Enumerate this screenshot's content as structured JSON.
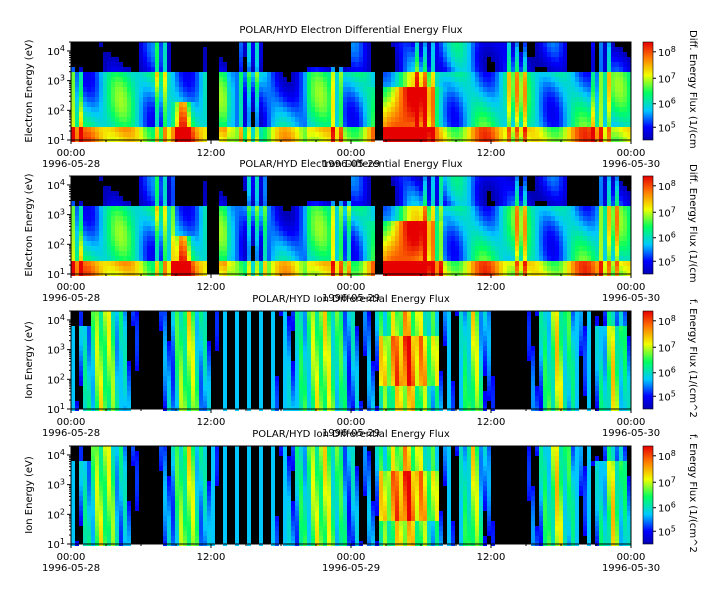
{
  "chart_data": [
    {
      "type": "heatmap",
      "title": "POLAR/HYD  Electron Differential Energy Flux",
      "ylabel": "Electron Energy (eV)",
      "colorbar_label": "Diff. Energy Flux (1/(cm",
      "colorbar_ticks": [
        "10^5",
        "10^6",
        "10^7",
        "10^8"
      ],
      "y_ticks": [
        "10^1",
        "10^2",
        "10^3",
        "10^4"
      ],
      "yscale": "log",
      "ylim": [
        10,
        20000
      ],
      "x_ticks": [
        {
          "time": "00:00",
          "date": "1996-05-28"
        },
        {
          "time": "12:00",
          "date": ""
        },
        {
          "time": "00:00",
          "date": "1996-05-29"
        },
        {
          "time": "12:00",
          "date": ""
        },
        {
          "time": "00:00",
          "date": "1996-05-30"
        }
      ]
    },
    {
      "type": "heatmap",
      "title": "POLAR/HYD  Electron Differential Energy Flux",
      "ylabel": "Electron Energy (eV)",
      "colorbar_label": "Diff. Energy Flux (1/(cm",
      "colorbar_ticks": [
        "10^5",
        "10^6",
        "10^7",
        "10^8"
      ],
      "y_ticks": [
        "10^1",
        "10^2",
        "10^3",
        "10^4"
      ],
      "yscale": "log",
      "ylim": [
        10,
        20000
      ],
      "x_ticks": [
        {
          "time": "00:00",
          "date": "1996-05-28"
        },
        {
          "time": "12:00",
          "date": ""
        },
        {
          "time": "00:00",
          "date": "1996-05-29"
        },
        {
          "time": "12:00",
          "date": ""
        },
        {
          "time": "00:00",
          "date": "1996-05-30"
        }
      ]
    },
    {
      "type": "heatmap",
      "title": "POLAR/HYD  Ion Differential Energy Flux",
      "ylabel": "Ion Energy (eV)",
      "colorbar_label": "f. Energy Flux (1/(cm^2",
      "colorbar_ticks": [
        "10^5",
        "10^6",
        "10^7",
        "10^8"
      ],
      "y_ticks": [
        "10^1",
        "10^2",
        "10^3",
        "10^4"
      ],
      "yscale": "log",
      "ylim": [
        10,
        20000
      ],
      "x_ticks": [
        {
          "time": "00:00",
          "date": "1996-05-28"
        },
        {
          "time": "12:00",
          "date": ""
        },
        {
          "time": "00:00",
          "date": "1996-05-29"
        },
        {
          "time": "12:00",
          "date": ""
        },
        {
          "time": "00:00",
          "date": "1996-05-30"
        }
      ]
    },
    {
      "type": "heatmap",
      "title": "POLAR/HYD  Ion Differential Energy Flux",
      "ylabel": "Ion Energy (eV)",
      "colorbar_label": "f. Energy Flux (1/(cm^2",
      "colorbar_ticks": [
        "10^5",
        "10^6",
        "10^7",
        "10^8"
      ],
      "y_ticks": [
        "10^1",
        "10^2",
        "10^3",
        "10^4"
      ],
      "yscale": "log",
      "ylim": [
        10,
        20000
      ],
      "x_ticks": [
        {
          "time": "00:00",
          "date": "1996-05-28"
        },
        {
          "time": "12:00",
          "date": ""
        },
        {
          "time": "00:00",
          "date": "1996-05-29"
        },
        {
          "time": "12:00",
          "date": ""
        },
        {
          "time": "00:00",
          "date": "1996-05-30"
        }
      ]
    }
  ]
}
